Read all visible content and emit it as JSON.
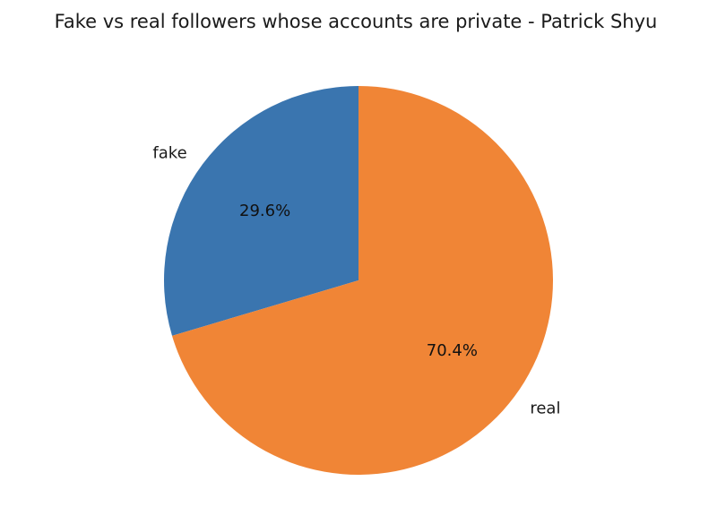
{
  "chart_data": {
    "type": "pie",
    "title": "Fake vs real followers whose accounts are private - Patrick Shyu",
    "categories": [
      "fake",
      "real"
    ],
    "values": [
      29.6,
      70.4
    ],
    "percent_labels": [
      "29.6%",
      "70.4%"
    ],
    "colors": [
      "#3a75af",
      "#f08536"
    ],
    "start_angle": "90° (12 o'clock), counter-clockwise",
    "legend": "none"
  }
}
